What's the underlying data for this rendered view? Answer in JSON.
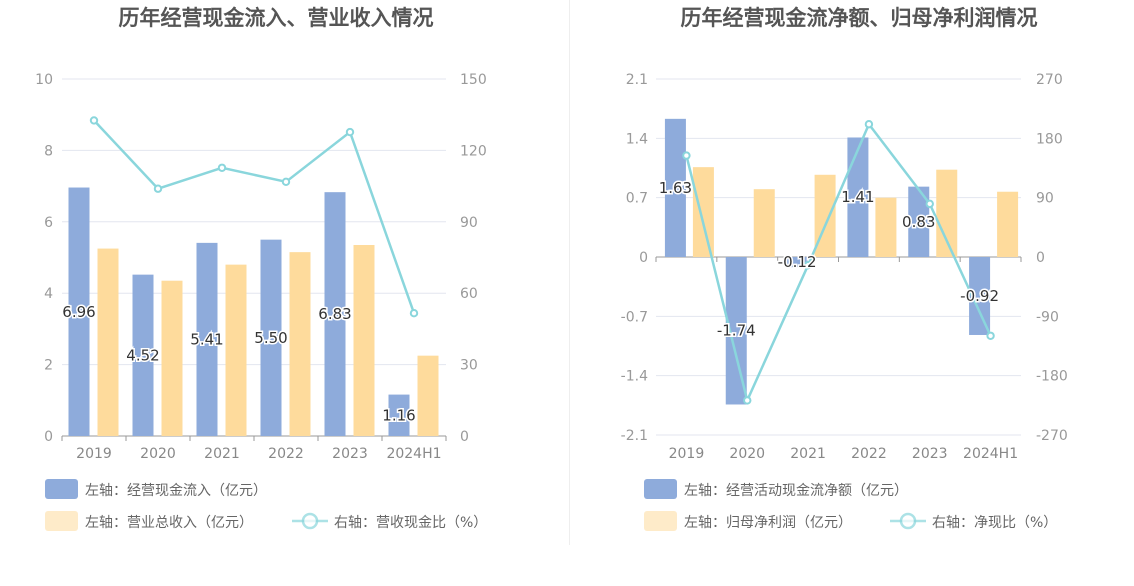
{
  "charts": [
    {
      "title": "历年经营现金流入、营业收入情况",
      "chart_data": {
        "type": "bar",
        "categories": [
          "2019",
          "2020",
          "2021",
          "2022",
          "2023",
          "2024H1"
        ],
        "left_axis": {
          "ylim": [
            0,
            10
          ],
          "ticks": [
            "0",
            "2",
            "4",
            "6",
            "8",
            "10"
          ]
        },
        "right_axis": {
          "ylim": [
            0,
            150
          ],
          "ticks": [
            "0",
            "30",
            "60",
            "90",
            "120",
            "150"
          ]
        },
        "series": [
          {
            "name": "左轴：经营现金流入（亿元）",
            "type": "bar",
            "axis": "left",
            "color": "#8eabdb",
            "values": [
              6.96,
              4.52,
              5.41,
              5.5,
              6.83,
              1.16
            ],
            "labels": [
              "6.96",
              "4.52",
              "5.41",
              "5.50",
              "6.83",
              "1.16"
            ]
          },
          {
            "name": "左轴：营业总收入（亿元）",
            "type": "bar",
            "axis": "left",
            "color": "#fedb9c",
            "values": [
              5.25,
              4.35,
              4.8,
              5.15,
              5.35,
              2.25
            ]
          },
          {
            "name": "右轴：营收现金比（%）",
            "type": "line",
            "axis": "right",
            "color": "#8ad6dc",
            "values": [
              132.6,
              103.9,
              112.7,
              106.8,
              127.7,
              51.6
            ]
          }
        ]
      }
    },
    {
      "title": "历年经营现金流净额、归母净利润情况",
      "chart_data": {
        "type": "bar",
        "categories": [
          "2019",
          "2020",
          "2021",
          "2022",
          "2023",
          "2024H1"
        ],
        "left_axis": {
          "ylim": [
            -2.1,
            2.1
          ],
          "ticks": [
            "-2.1",
            "-1.4",
            "-0.7",
            "0",
            "0.7",
            "1.4",
            "2.1"
          ]
        },
        "right_axis": {
          "ylim": [
            -270,
            270
          ],
          "ticks": [
            "-270",
            "-180",
            "-90",
            "0",
            "90",
            "180",
            "270"
          ]
        },
        "series": [
          {
            "name": "左轴：经营活动现金流净额（亿元）",
            "type": "bar",
            "axis": "left",
            "color": "#8eabdb",
            "values": [
              1.63,
              -1.74,
              -0.12,
              1.41,
              0.83,
              -0.92
            ],
            "labels": [
              "1.63",
              "-1.74",
              "-0.12",
              "1.41",
              "0.83",
              "-0.92"
            ]
          },
          {
            "name": "左轴：归母净利润（亿元）",
            "type": "bar",
            "axis": "left",
            "color": "#fedb9c",
            "values": [
              1.06,
              0.8,
              0.97,
              0.7,
              1.03,
              0.77
            ]
          },
          {
            "name": "右轴：净现比（%）",
            "type": "line",
            "axis": "right",
            "color": "#8ad6dc",
            "values": [
              153.8,
              -217.5,
              -12.4,
              201.4,
              80.6,
              -119.5
            ]
          }
        ]
      }
    }
  ]
}
